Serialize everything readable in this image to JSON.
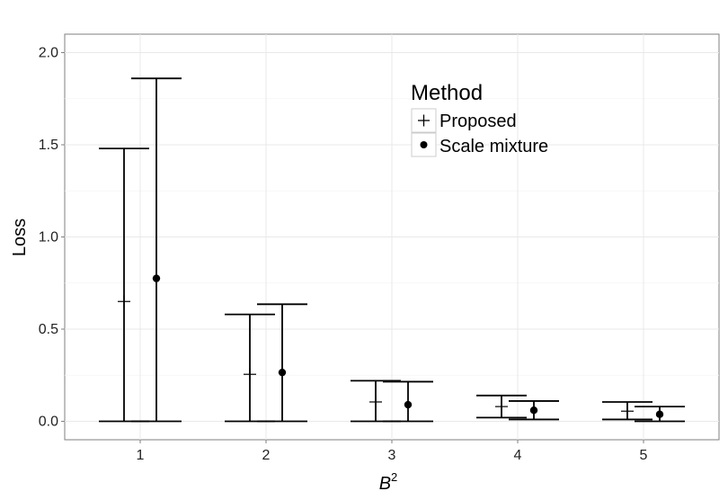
{
  "chart_data": {
    "type": "errorbar",
    "xlabel": "B",
    "xlabel_superscript": "2",
    "ylabel": "Loss",
    "categories": [
      "1",
      "2",
      "3",
      "4",
      "5"
    ],
    "ylim": [
      -0.1,
      2.1
    ],
    "yticks": [
      "0.0",
      "0.5",
      "1.0",
      "1.5",
      "2.0"
    ],
    "grid": true,
    "legend": {
      "title": "Method",
      "placement": "top-center",
      "entries": [
        "Proposed",
        "Scale mixture"
      ]
    },
    "series": [
      {
        "name": "Proposed",
        "marker": "cross",
        "values": [
          0.65,
          0.255,
          0.105,
          0.08,
          0.055
        ],
        "lower": [
          0.0,
          0.0,
          0.0,
          0.02,
          0.01
        ],
        "upper": [
          1.48,
          0.58,
          0.22,
          0.14,
          0.105
        ]
      },
      {
        "name": "Scale mixture",
        "marker": "dot",
        "values": [
          0.775,
          0.265,
          0.09,
          0.06,
          0.038
        ],
        "lower": [
          0.0,
          0.0,
          0.0,
          0.01,
          0.0
        ],
        "upper": [
          1.86,
          0.635,
          0.215,
          0.11,
          0.08
        ]
      }
    ]
  }
}
